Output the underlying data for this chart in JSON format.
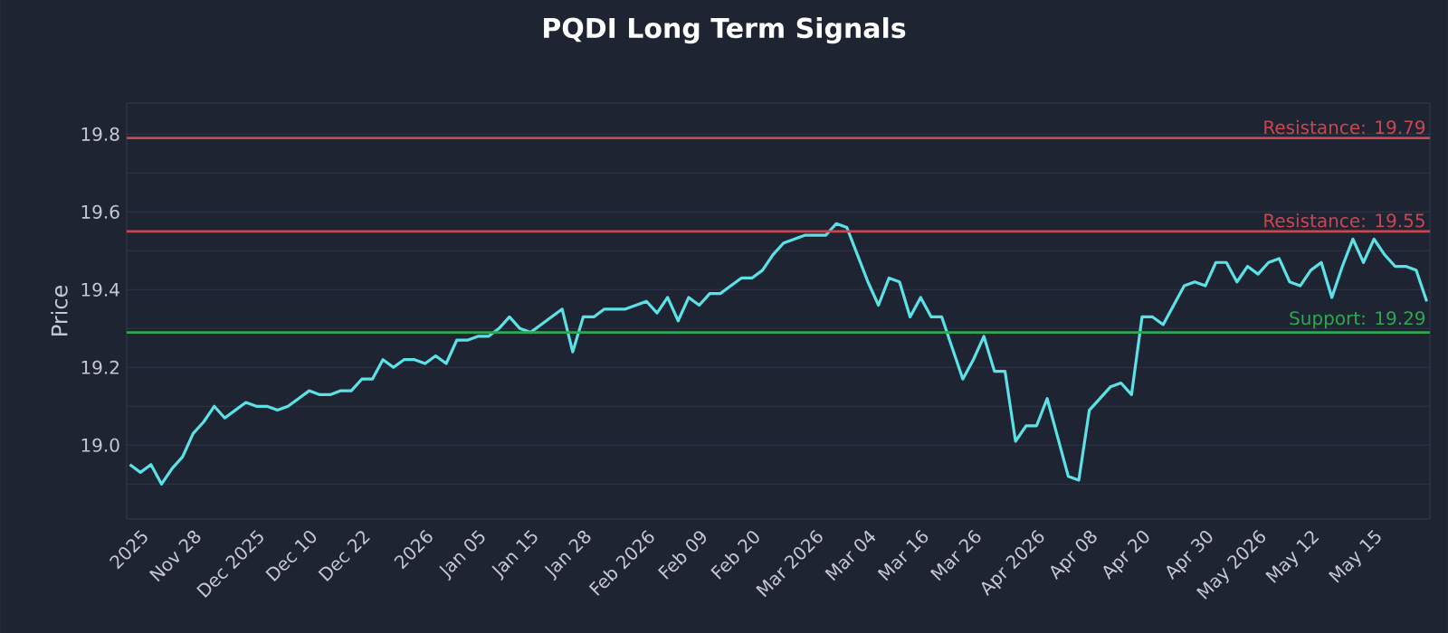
{
  "chart_data": {
    "type": "line",
    "title": "PQDI Long Term Signals",
    "ylabel": "Price",
    "categories": [
      null,
      "2025",
      null,
      null,
      null,
      null,
      "Nov 28",
      null,
      null,
      null,
      null,
      null,
      "Dec 2025",
      null,
      null,
      null,
      null,
      "Dec 10",
      null,
      null,
      null,
      null,
      "Dec 22",
      null,
      null,
      null,
      null,
      null,
      "2026",
      null,
      null,
      null,
      null,
      "Jan 05",
      null,
      null,
      null,
      null,
      "Jan 15",
      null,
      null,
      null,
      null,
      "Jan 28",
      null,
      null,
      null,
      null,
      null,
      "Feb 2026",
      null,
      null,
      null,
      null,
      "Feb 09",
      null,
      null,
      null,
      null,
      "Feb 20",
      null,
      null,
      null,
      null,
      null,
      "Mar 2026",
      null,
      null,
      null,
      null,
      "Mar 04",
      null,
      null,
      null,
      null,
      "Mar 16",
      null,
      null,
      null,
      null,
      "Mar 26",
      null,
      null,
      null,
      null,
      null,
      "Apr 2026",
      null,
      null,
      null,
      null,
      "Apr 08",
      null,
      null,
      null,
      null,
      "Apr 20",
      null,
      null,
      null,
      null,
      null,
      "Apr 30",
      null,
      null,
      null,
      null,
      "May 2026",
      null,
      null,
      null,
      null,
      "May 12",
      null,
      null,
      null,
      null,
      null,
      "May 15",
      null,
      null,
      null,
      null,
      null
    ],
    "series": [
      {
        "color": "#5ce1e6",
        "values": [
          18.95,
          18.93,
          18.95,
          18.9,
          18.94,
          18.97,
          19.03,
          19.06,
          19.1,
          19.07,
          19.09,
          19.11,
          19.1,
          19.1,
          19.09,
          19.1,
          19.12,
          19.14,
          19.13,
          19.13,
          19.14,
          19.14,
          19.17,
          19.17,
          19.22,
          19.2,
          19.22,
          19.22,
          19.21,
          19.23,
          19.21,
          19.27,
          19.27,
          19.28,
          19.28,
          19.3,
          19.33,
          19.3,
          19.29,
          19.31,
          19.33,
          19.35,
          19.24,
          19.33,
          19.33,
          19.35,
          19.35,
          19.35,
          19.36,
          19.37,
          19.34,
          19.38,
          19.32,
          19.38,
          19.36,
          19.39,
          19.39,
          19.41,
          19.43,
          19.43,
          19.45,
          19.49,
          19.52,
          19.53,
          19.54,
          19.54,
          19.54,
          19.57,
          19.56,
          19.49,
          19.42,
          19.36,
          19.43,
          19.42,
          19.33,
          19.38,
          19.33,
          19.33,
          19.25,
          19.17,
          19.22,
          19.28,
          19.19,
          19.19,
          19.01,
          19.05,
          19.05,
          19.12,
          19.02,
          18.92,
          18.91,
          19.09,
          19.12,
          19.15,
          19.16,
          19.13,
          19.33,
          19.33,
          19.31,
          19.36,
          19.41,
          19.42,
          19.41,
          19.47,
          19.47,
          19.42,
          19.46,
          19.44,
          19.47,
          19.48,
          19.42,
          19.41,
          19.45,
          19.47,
          19.38,
          19.46,
          19.53,
          19.47,
          19.53,
          19.49,
          19.46,
          19.46,
          19.45,
          19.37
        ]
      }
    ],
    "ylim": [
      18.81,
      19.88
    ],
    "yticks": [
      {
        "value": 18.9,
        "label": null
      },
      {
        "value": 19.0,
        "label": "19.0"
      },
      {
        "value": 19.1,
        "label": null
      },
      19.2,
      {
        "value": 19.3,
        "label": null
      },
      19.4,
      {
        "value": 19.5,
        "label": null
      },
      19.6,
      {
        "value": 19.7,
        "label": null
      },
      19.8
    ],
    "grid": "y",
    "ref_lines": [
      {
        "axis": "y",
        "value": 19.79,
        "label": "Resistance: 19.79",
        "color": "#c9474f"
      },
      {
        "axis": "y",
        "value": 19.55,
        "label": "Resistance: 19.55",
        "color": "#c9474f"
      },
      {
        "axis": "y",
        "value": 19.29,
        "label": "Support: 19.29",
        "color": "#2ea84f"
      }
    ]
  }
}
